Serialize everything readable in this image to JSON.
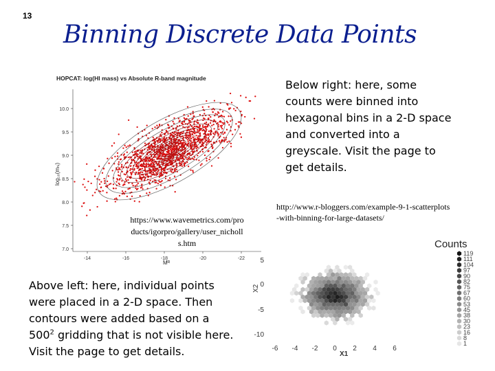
{
  "slide": {
    "number": "13",
    "title": "Binning Discrete Data Points"
  },
  "left_figure": {
    "title": "HOPCAT: log(HI mass) vs Absolute R-band magnitude",
    "ylabel": "log₁₀(mₕᵢ)",
    "xlabel": "Mᴿ",
    "yticks": [
      "10.0",
      "9.5",
      "9.0",
      "8.5",
      "8.0",
      "7.5",
      "7.0"
    ],
    "xticks": [
      "-14",
      "-16",
      "-18",
      "-20",
      "-22"
    ],
    "point_color": "#dd1111",
    "url": "https://www.wavemetrics.com/products/igorpro/gallery/user_nicholls.htm",
    "url_lines": [
      "https://www.wavemetrics.com/pro",
      "ducts/igorpro/gallery/user_nicholl",
      "s.htm"
    ]
  },
  "right_text": {
    "lines": [
      "Below right: here, some",
      "counts were binned into",
      "hexagonal bins in a 2-D space",
      "and converted into a",
      "greyscale.  Visit the page to",
      "get details."
    ]
  },
  "right_figure": {
    "url_lines": [
      "http://www.r-bloggers.com/example-9-1-scatterplots",
      "-with-binning-for-large-datasets/"
    ],
    "ylabel": "X2",
    "xlabel": "X1",
    "yticks": [
      "5",
      "0",
      "-5",
      "-10"
    ],
    "xticks": [
      "-6",
      "-4",
      "-2",
      "0",
      "2",
      "4",
      "6"
    ],
    "legend_title": "Counts",
    "legend_values": [
      "119",
      "111",
      "104",
      "97",
      "90",
      "82",
      "75",
      "67",
      "60",
      "53",
      "45",
      "38",
      "30",
      "23",
      "16",
      "8",
      "1"
    ]
  },
  "left_text": {
    "line1": "Above left: here, individual points",
    "line2": "were placed in a 2-D space. Then",
    "line3": "contours were added based on a",
    "line4_pre": "500",
    "line4_sup": "2",
    "line4_post": " gridding that is not visible here.",
    "line5": "Visit the page to get details."
  }
}
